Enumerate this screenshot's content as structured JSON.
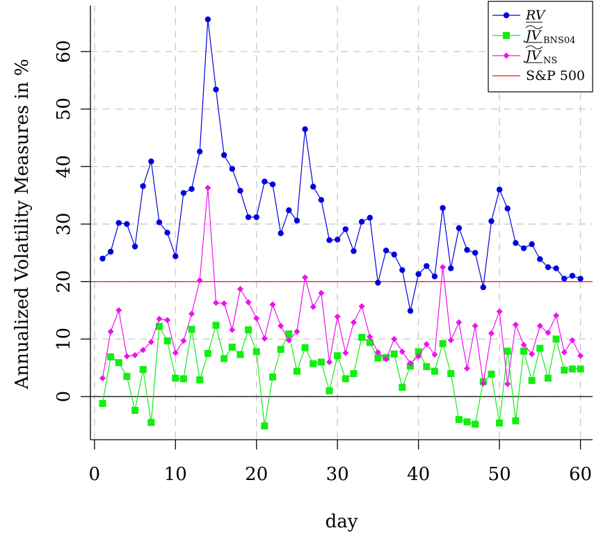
{
  "chart_data": {
    "type": "line",
    "title": "",
    "xlabel": "day",
    "ylabel": "Annualized Volatility Measures in %",
    "xlim": [
      -0.5,
      61.5
    ],
    "ylim": [
      -7.5,
      68
    ],
    "x_ticks": [
      0,
      10,
      20,
      30,
      40,
      50,
      60
    ],
    "y_ticks": [
      0,
      10,
      20,
      30,
      40,
      50,
      60
    ],
    "grid": true,
    "legend_position": "top-right",
    "x": [
      1,
      2,
      3,
      4,
      5,
      6,
      7,
      8,
      9,
      10,
      11,
      12,
      13,
      14,
      15,
      16,
      17,
      18,
      19,
      20,
      21,
      22,
      23,
      24,
      25,
      26,
      27,
      28,
      29,
      30,
      31,
      32,
      33,
      34,
      35,
      36,
      37,
      38,
      39,
      40,
      41,
      42,
      43,
      44,
      45,
      46,
      47,
      48,
      49,
      50,
      51,
      52,
      53,
      54,
      55,
      56,
      57,
      58,
      59,
      60
    ],
    "series": [
      {
        "name": "RV",
        "name_sub": "",
        "color": "#0000dd",
        "marker": "circle",
        "values": [
          24.0,
          25.2,
          30.2,
          30.0,
          26.1,
          36.6,
          40.9,
          30.3,
          28.5,
          24.4,
          35.4,
          36.1,
          42.6,
          65.6,
          53.4,
          42.0,
          39.6,
          35.8,
          31.2,
          31.2,
          37.4,
          36.9,
          28.4,
          32.4,
          30.6,
          46.5,
          36.5,
          34.2,
          27.2,
          27.3,
          29.1,
          25.3,
          30.4,
          31.1,
          19.8,
          25.4,
          24.7,
          22.0,
          14.9,
          21.3,
          22.7,
          20.9,
          32.8,
          22.3,
          29.3,
          25.5,
          25.0,
          19.0,
          30.5,
          36.0,
          32.7,
          26.7,
          25.8,
          26.5,
          23.9,
          22.5,
          22.3,
          20.5,
          21.0,
          20.5
        ]
      },
      {
        "name": "JV",
        "name_sub": "BNS04",
        "color": "#11ee11",
        "marker": "square",
        "values": [
          -1.2,
          6.9,
          5.9,
          3.5,
          -2.4,
          4.7,
          -4.5,
          12.2,
          9.7,
          3.2,
          3.1,
          11.7,
          2.9,
          7.5,
          12.4,
          6.6,
          8.6,
          7.3,
          11.6,
          7.8,
          -5.1,
          3.4,
          8.2,
          10.9,
          4.4,
          8.5,
          5.7,
          6.0,
          1.0,
          7.1,
          3.1,
          4.0,
          10.3,
          9.4,
          6.7,
          6.8,
          7.4,
          1.6,
          5.3,
          7.8,
          5.2,
          4.4,
          9.2,
          4.0,
          -4.0,
          -4.4,
          -4.8,
          2.6,
          3.9,
          -4.6,
          7.9,
          -4.2,
          7.9,
          2.8,
          8.4,
          3.2,
          10.0,
          4.6,
          4.8,
          4.8
        ]
      },
      {
        "name": "JV",
        "name_sub": "NS",
        "color": "#ee11ee",
        "marker": "diamond",
        "values": [
          3.2,
          11.3,
          15.0,
          7.0,
          7.2,
          8.1,
          9.5,
          13.5,
          13.3,
          7.6,
          9.7,
          14.4,
          20.2,
          36.3,
          16.3,
          16.2,
          11.6,
          18.7,
          16.4,
          13.6,
          10.1,
          16.0,
          12.3,
          9.8,
          11.3,
          20.7,
          15.6,
          18.0,
          6.0,
          13.9,
          7.6,
          12.9,
          15.7,
          10.4,
          7.7,
          6.5,
          10.0,
          7.8,
          5.8,
          7.0,
          9.1,
          7.3,
          22.5,
          9.8,
          12.9,
          4.9,
          12.3,
          2.3,
          11.0,
          14.8,
          2.2,
          12.5,
          9.0,
          7.4,
          12.3,
          11.1,
          14.1,
          7.7,
          9.8,
          7.1
        ]
      }
    ],
    "reference_lines": [
      {
        "name": "S&P 500",
        "value": 20,
        "color": "#ee1111"
      },
      {
        "name": "",
        "value": 0,
        "color": "#000000"
      }
    ]
  }
}
